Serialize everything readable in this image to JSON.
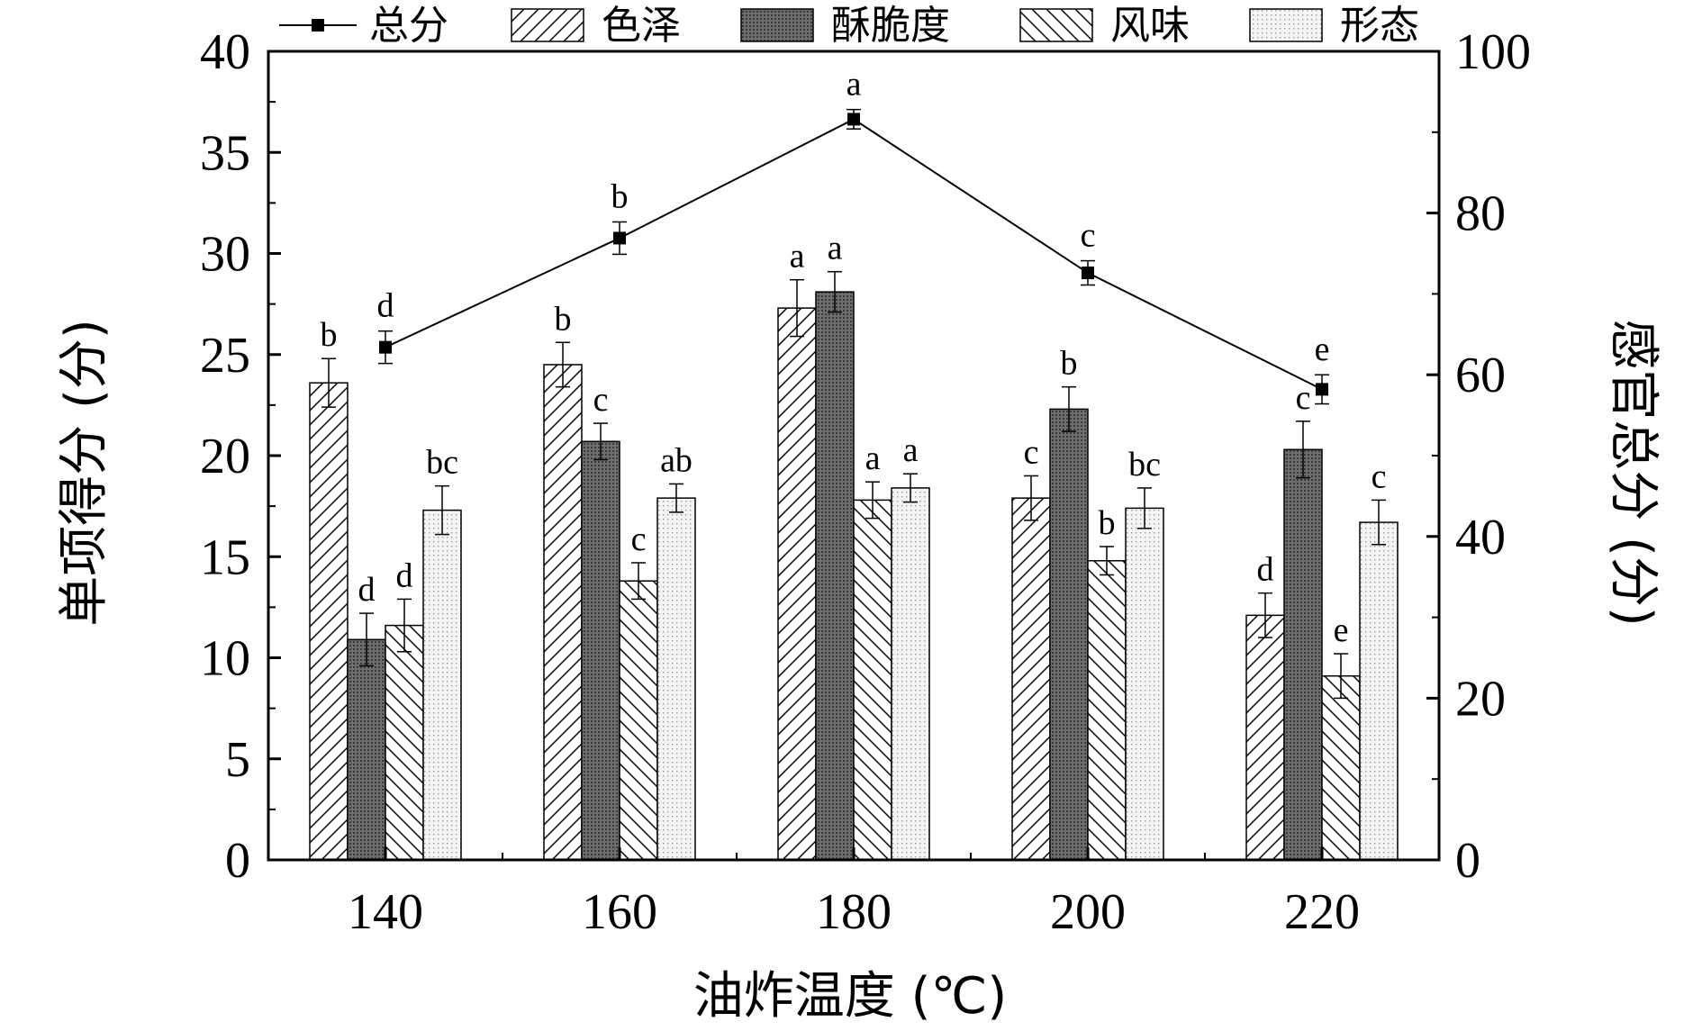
{
  "chart_data": {
    "type": "bar",
    "xlabel": "油炸温度 (℃)",
    "ylabel": "单项得分 (分)",
    "y2label": "感官总分 (分)",
    "categories": [
      "140",
      "160",
      "180",
      "200",
      "220"
    ],
    "ylim": [
      0,
      40
    ],
    "yticks": [
      0,
      5,
      10,
      15,
      20,
      25,
      30,
      35,
      40
    ],
    "y2lim": [
      0,
      100
    ],
    "y2ticks": [
      0,
      20,
      40,
      60,
      80,
      100
    ],
    "legend_position": "top",
    "grid": false,
    "series": [
      {
        "name": "色泽",
        "kind": "bar",
        "pattern": "diag-right",
        "color": "#ffffff",
        "values": [
          23.6,
          24.5,
          27.3,
          17.9,
          12.1
        ],
        "errors": [
          1.2,
          1.1,
          1.4,
          1.1,
          1.1
        ],
        "labels": [
          "b",
          "b",
          "a",
          "c",
          "d"
        ]
      },
      {
        "name": "酥脆度",
        "kind": "bar",
        "pattern": "dark-dots",
        "color": "#6e6e6e",
        "values": [
          10.9,
          20.7,
          28.1,
          22.3,
          20.3
        ],
        "errors": [
          1.3,
          0.9,
          1.0,
          1.1,
          1.4
        ],
        "labels": [
          "d",
          "c",
          "a",
          "b",
          "c"
        ]
      },
      {
        "name": "风味",
        "kind": "bar",
        "pattern": "diag-left",
        "color": "#ffffff",
        "values": [
          11.6,
          13.8,
          17.8,
          14.8,
          9.1
        ],
        "errors": [
          1.3,
          0.9,
          0.9,
          0.7,
          1.1
        ],
        "labels": [
          "d",
          "c",
          "a",
          "b",
          "e"
        ]
      },
      {
        "name": "形态",
        "kind": "bar",
        "pattern": "light-dots",
        "color": "#e8e8e8",
        "values": [
          17.3,
          17.9,
          18.4,
          17.4,
          16.7
        ],
        "errors": [
          1.2,
          0.7,
          0.7,
          1.0,
          1.1
        ],
        "labels": [
          "bc",
          "ab",
          "a",
          "bc",
          "c"
        ]
      },
      {
        "name": "总分",
        "kind": "line",
        "axis": "right",
        "color": "#000000",
        "values": [
          63.4,
          76.9,
          91.6,
          72.6,
          58.2
        ],
        "errors": [
          2.0,
          2.0,
          1.2,
          1.5,
          1.8
        ],
        "labels": [
          "d",
          "b",
          "a",
          "c",
          "e"
        ]
      }
    ]
  }
}
